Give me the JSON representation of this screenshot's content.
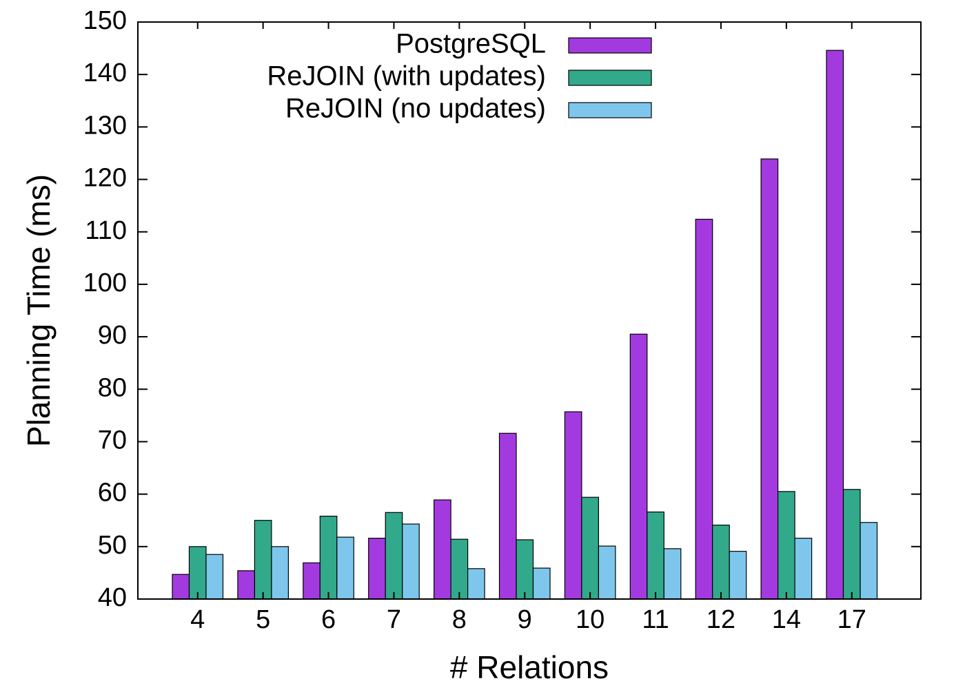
{
  "colors": {
    "postgres": "#a33ae0",
    "rejoin_updates": "#32a98a",
    "rejoin_no_updates": "#7ec6ec",
    "axis": "#000000"
  },
  "chart_data": {
    "type": "bar",
    "title": "",
    "xlabel": "# Relations",
    "ylabel": "Planning Time (ms)",
    "ylim": [
      40,
      150
    ],
    "yticks": [
      40,
      50,
      60,
      70,
      80,
      90,
      100,
      110,
      120,
      130,
      140,
      150
    ],
    "categories": [
      "4",
      "5",
      "6",
      "7",
      "8",
      "9",
      "10",
      "11",
      "12",
      "14",
      "17"
    ],
    "legend_position": "top-right",
    "grid": false,
    "series": [
      {
        "name": "PostgreSQL",
        "color_key": "postgres",
        "values": [
          44.7,
          45.4,
          46.9,
          51.6,
          58.9,
          71.6,
          75.7,
          90.5,
          112.4,
          123.9,
          144.6
        ]
      },
      {
        "name": "ReJOIN (with updates)",
        "color_key": "rejoin_updates",
        "values": [
          50.0,
          55.0,
          55.8,
          56.5,
          51.4,
          51.3,
          59.4,
          56.6,
          54.1,
          60.5,
          60.9
        ]
      },
      {
        "name": "ReJOIN (no updates)",
        "color_key": "rejoin_no_updates",
        "values": [
          48.5,
          50.0,
          51.8,
          54.3,
          45.8,
          45.9,
          50.1,
          49.6,
          49.1,
          51.6,
          54.6
        ]
      }
    ]
  }
}
